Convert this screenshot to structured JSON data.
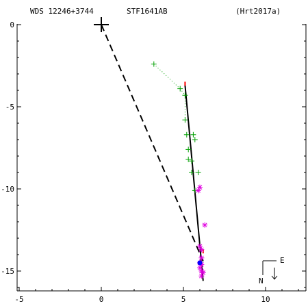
{
  "header": {
    "wds": "WDS 12246+3744",
    "discoverer": "STF1641AB",
    "reference": "(Hrt2017a)"
  },
  "compass": {
    "east_label": "E",
    "north_label": "N"
  },
  "chart_data": {
    "type": "scatter",
    "xlim": [
      -5,
      12.5
    ],
    "ylim": [
      -16.6,
      0.5
    ],
    "x_ticks": [
      -5,
      0,
      5,
      10
    ],
    "y_ticks": [
      0,
      -5,
      -10,
      -15
    ],
    "x_tick_labels": [
      "-5",
      "0",
      "5",
      "10"
    ],
    "y_tick_labels": [
      "0",
      "-5",
      "-10",
      "-15"
    ],
    "primary": {
      "x": 0,
      "y": 0
    },
    "orbit_line": {
      "from": [
        5.1,
        -3.7
      ],
      "to": [
        6.2,
        -15.6
      ]
    },
    "separation_line": {
      "from": [
        0,
        0
      ],
      "to": [
        6.2,
        -14.4
      ]
    },
    "series": [
      {
        "marker": "plus",
        "color": "#00a000",
        "points": [
          [
            3.2,
            -2.4
          ],
          [
            4.8,
            -3.9
          ],
          [
            5.1,
            -4.3
          ],
          [
            5.1,
            -5.8
          ],
          [
            5.2,
            -6.7
          ],
          [
            5.6,
            -6.7
          ],
          [
            5.7,
            -7.0
          ],
          [
            5.3,
            -7.6
          ],
          [
            5.3,
            -8.2
          ],
          [
            5.5,
            -8.3
          ],
          [
            5.5,
            -9.0
          ],
          [
            5.9,
            -9.0
          ],
          [
            5.7,
            -10.1
          ]
        ]
      },
      {
        "marker": "asterisk",
        "color": "#e000e0",
        "points": [
          [
            6.0,
            -9.9
          ],
          [
            5.9,
            -10.1
          ],
          [
            6.3,
            -12.2
          ],
          [
            6.0,
            -13.5
          ],
          [
            6.1,
            -13.7
          ],
          [
            6.1,
            -14.2
          ],
          [
            6.0,
            -14.5
          ],
          [
            6.1,
            -14.6
          ],
          [
            6.0,
            -14.8
          ],
          [
            6.1,
            -15.0
          ],
          [
            6.2,
            -15.1
          ],
          [
            6.1,
            -15.3
          ]
        ]
      },
      {
        "marker": "dot",
        "color": "#0000ff",
        "points": [
          [
            6.0,
            -14.5
          ]
        ]
      }
    ],
    "residual_ticks": [
      [
        5.1,
        -3.6
      ],
      [
        6.2,
        -13.8
      ]
    ]
  }
}
